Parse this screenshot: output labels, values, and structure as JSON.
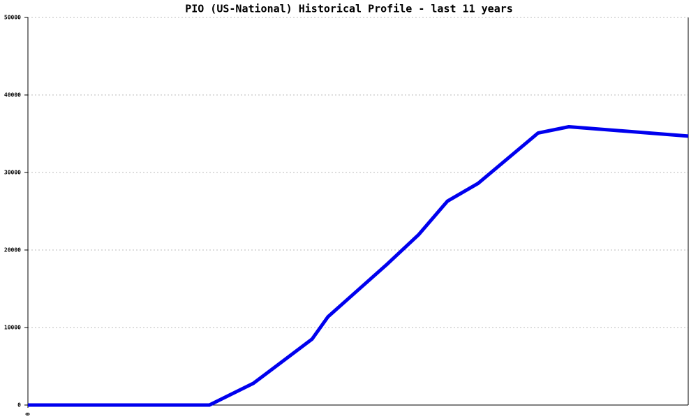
{
  "chart_data": {
    "type": "line",
    "title": "PIO (US-National) Historical Profile - last 11 years",
    "x": [
      0,
      260,
      323,
      407,
      430,
      470,
      515,
      560,
      601,
      645,
      731,
      775,
      946
    ],
    "series": [
      {
        "color": "#0000ee",
        "values": [
          0,
          0,
          2800,
          8500,
          11400,
          14600,
          18200,
          22000,
          26300,
          28600,
          35100,
          35900,
          34700
        ]
      }
    ],
    "xlim": [
      0,
      946
    ],
    "xticks": [
      0
    ],
    "ylim": [
      0,
      50000
    ],
    "yticks": [
      0,
      10000,
      20000,
      30000,
      40000,
      50000
    ],
    "grid": true
  }
}
